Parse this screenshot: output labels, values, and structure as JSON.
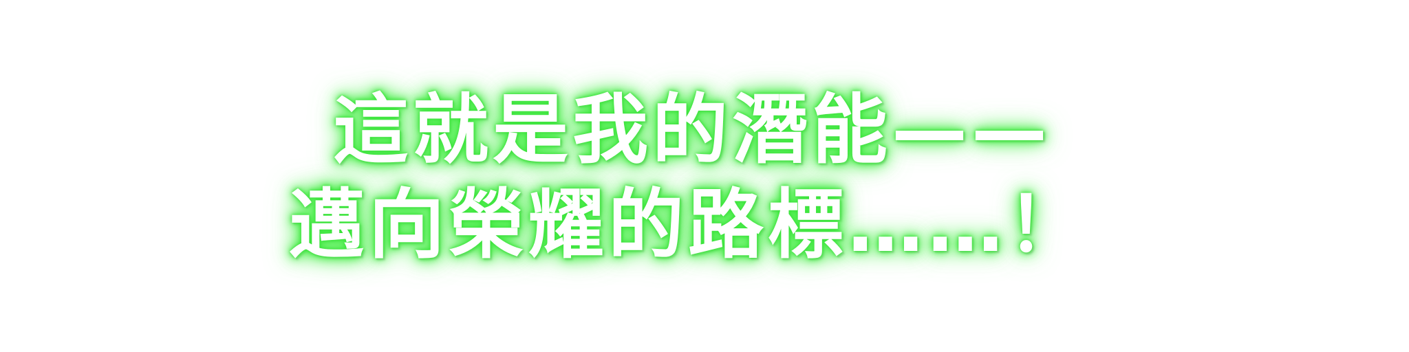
{
  "caption": {
    "line1": "這就是我的潛能——",
    "line2": "邁向榮耀的路標……！"
  },
  "style": {
    "text_color": "#ffffff",
    "glow_color": "#4cf04c",
    "background": "#ffffff"
  }
}
